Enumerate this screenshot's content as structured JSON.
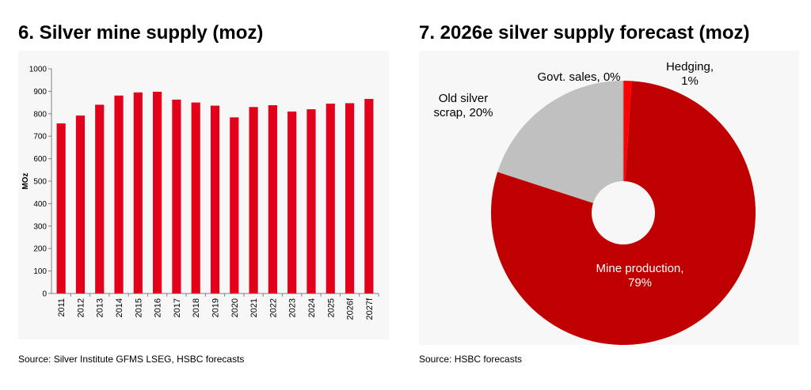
{
  "left": {
    "title": "6. Silver mine supply (moz)",
    "source": "Source: Silver Institute GFMS LSEG, HSBC forecasts",
    "chart_data": {
      "type": "bar",
      "title": "6. Silver mine supply (moz)",
      "ylabel": "MOz",
      "xlabel": "",
      "ylim": [
        0,
        1000
      ],
      "yticks": [
        0,
        100,
        200,
        300,
        400,
        500,
        600,
        700,
        800,
        900,
        1000
      ],
      "categories": [
        "2011",
        "2012",
        "2013",
        "2014",
        "2015",
        "2016",
        "2017",
        "2018",
        "2019",
        "2020",
        "2021",
        "2022",
        "2023",
        "2024",
        "2025",
        "2026f",
        "2027f"
      ],
      "values": [
        757,
        792,
        840,
        881,
        895,
        898,
        863,
        850,
        836,
        784,
        830,
        838,
        810,
        820,
        845,
        847,
        866
      ],
      "bar_color": "#e3001b",
      "grid": false
    }
  },
  "right": {
    "title": "7. 2026e silver supply forecast (moz)",
    "source": "Source: HSBC forecasts",
    "chart_data": {
      "type": "pie",
      "title": "7. 2026e silver supply forecast (moz)",
      "slices": [
        {
          "label": "Hedging,",
          "label2": "1%",
          "value": 1,
          "color": "#ff0000"
        },
        {
          "label": "Mine production,",
          "label2": "79%",
          "value": 79,
          "color": "#c00000"
        },
        {
          "label": "Old silver",
          "label2": "scrap, 20%",
          "value": 20,
          "color": "#c0c0c0"
        },
        {
          "label": "Govt. sales, 0%",
          "label2": "",
          "value": 0,
          "color": "#999999"
        }
      ]
    }
  }
}
